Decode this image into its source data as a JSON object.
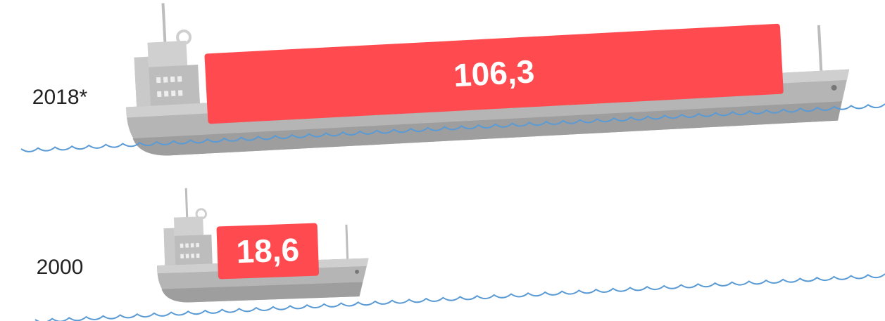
{
  "chart_data": {
    "type": "bar",
    "orientation": "horizontal",
    "categories": [
      "2018*",
      "2000"
    ],
    "values": [
      106.3,
      18.6
    ],
    "value_labels": [
      "106,3",
      "18,6"
    ],
    "color": "#ff4b4f"
  }
}
